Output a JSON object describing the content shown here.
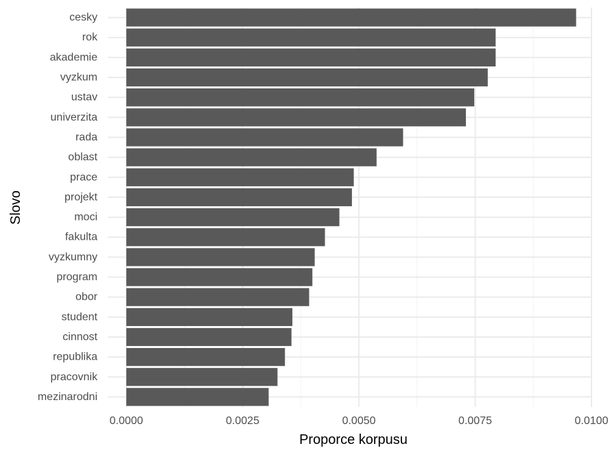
{
  "chart_data": {
    "type": "bar",
    "orientation": "horizontal",
    "title": "",
    "xlabel": "Proporce korpusu",
    "ylabel": "Slovo",
    "categories": [
      "cesky",
      "rok",
      "akademie",
      "vyzkum",
      "ustav",
      "univerzita",
      "rada",
      "oblast",
      "prace",
      "projekt",
      "moci",
      "fakulta",
      "vyzkumny",
      "program",
      "obor",
      "student",
      "cinnost",
      "republika",
      "pracovnik",
      "mezinarodni"
    ],
    "values": [
      0.00967,
      0.00794,
      0.00794,
      0.00777,
      0.00748,
      0.0073,
      0.00595,
      0.00538,
      0.00489,
      0.00485,
      0.00458,
      0.00427,
      0.00405,
      0.004,
      0.00393,
      0.00357,
      0.00355,
      0.00341,
      0.00325,
      0.00306
    ],
    "xlim": [
      -0.0004,
      0.01
    ],
    "x_ticks": [
      0.0,
      0.0025,
      0.005,
      0.0075,
      0.01
    ],
    "x_tick_labels": [
      "0.0000",
      "0.0025",
      "0.0050",
      "0.0075",
      "0.0100"
    ],
    "grid": true,
    "colors": {
      "bar": "#595959",
      "grid_major": "#ebebeb",
      "grid_minor": "#f3f3f3",
      "text": "#4d4d4d",
      "title": "#000000",
      "background": "#ffffff"
    }
  }
}
